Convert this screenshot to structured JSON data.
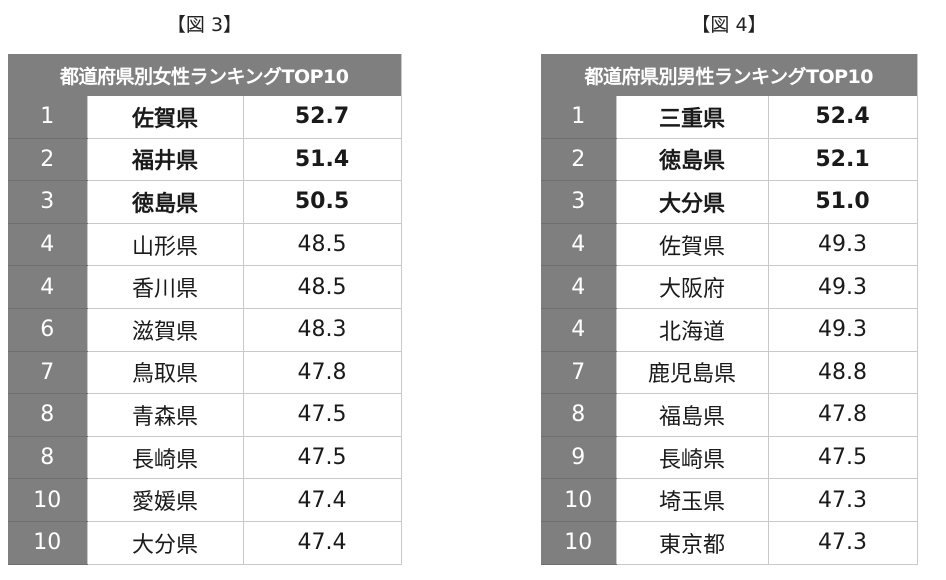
{
  "female": {
    "caption": "【図 3】",
    "title": "都道府県別女性ランキングTOP10",
    "rows": [
      {
        "rank": "1",
        "prefecture": "佐賀県",
        "value": "52.7",
        "bold": true
      },
      {
        "rank": "2",
        "prefecture": "福井県",
        "value": "51.4",
        "bold": true
      },
      {
        "rank": "3",
        "prefecture": "徳島県",
        "value": "50.5",
        "bold": true
      },
      {
        "rank": "4",
        "prefecture": "山形県",
        "value": "48.5",
        "bold": false
      },
      {
        "rank": "4",
        "prefecture": "香川県",
        "value": "48.5",
        "bold": false
      },
      {
        "rank": "6",
        "prefecture": "滋賀県",
        "value": "48.3",
        "bold": false
      },
      {
        "rank": "7",
        "prefecture": "鳥取県",
        "value": "47.8",
        "bold": false
      },
      {
        "rank": "8",
        "prefecture": "青森県",
        "value": "47.5",
        "bold": false
      },
      {
        "rank": "8",
        "prefecture": "長崎県",
        "value": "47.5",
        "bold": false
      },
      {
        "rank": "10",
        "prefecture": "愛媛県",
        "value": "47.4",
        "bold": false
      },
      {
        "rank": "10",
        "prefecture": "大分県",
        "value": "47.4",
        "bold": false
      }
    ]
  },
  "male": {
    "caption": "【図 4】",
    "title": "都道府県別男性ランキングTOP10",
    "rows": [
      {
        "rank": "1",
        "prefecture": "三重県",
        "value": "52.4",
        "bold": true
      },
      {
        "rank": "2",
        "prefecture": "徳島県",
        "value": "52.1",
        "bold": true
      },
      {
        "rank": "3",
        "prefecture": "大分県",
        "value": "51.0",
        "bold": true
      },
      {
        "rank": "4",
        "prefecture": "佐賀県",
        "value": "49.3",
        "bold": false
      },
      {
        "rank": "4",
        "prefecture": "大阪府",
        "value": "49.3",
        "bold": false
      },
      {
        "rank": "4",
        "prefecture": "北海道",
        "value": "49.3",
        "bold": false
      },
      {
        "rank": "7",
        "prefecture": "鹿児島県",
        "value": "48.8",
        "bold": false
      },
      {
        "rank": "8",
        "prefecture": "福島県",
        "value": "47.8",
        "bold": false
      },
      {
        "rank": "9",
        "prefecture": "長崎県",
        "value": "47.5",
        "bold": false
      },
      {
        "rank": "10",
        "prefecture": "埼玉県",
        "value": "47.3",
        "bold": false
      },
      {
        "rank": "10",
        "prefecture": "東京都",
        "value": "47.3",
        "bold": false
      }
    ]
  },
  "colors": {
    "header_bg": "#7f7f7f",
    "rank_bg": "#7f7f7f",
    "header_text": "#ffffff",
    "grid": "#c9c9c9"
  }
}
